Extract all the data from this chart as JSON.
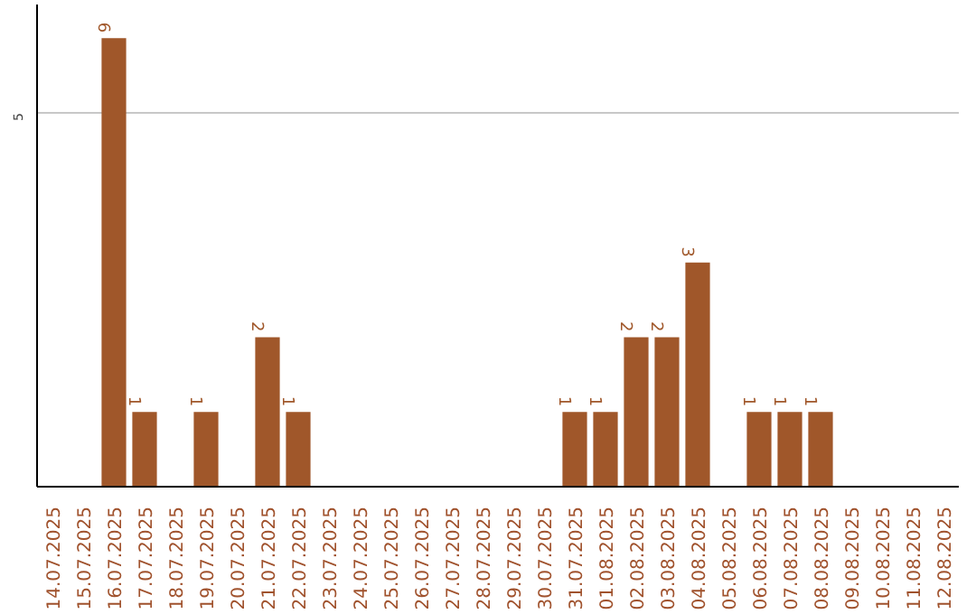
{
  "chart_data": {
    "type": "bar",
    "categories": [
      "14.07.2025",
      "15.07.2025",
      "16.07.2025",
      "17.07.2025",
      "18.07.2025",
      "19.07.2025",
      "20.07.2025",
      "21.07.2025",
      "22.07.2025",
      "23.07.2025",
      "24.07.2025",
      "25.07.2025",
      "26.07.2025",
      "27.07.2025",
      "28.07.2025",
      "29.07.2025",
      "30.07.2025",
      "31.07.2025",
      "01.08.2025",
      "02.08.2025",
      "03.08.2025",
      "04.08.2025",
      "05.08.2025",
      "06.08.2025",
      "07.08.2025",
      "08.08.2025",
      "09.08.2025",
      "10.08.2025",
      "11.08.2025",
      "12.08.2025"
    ],
    "values": [
      0,
      0,
      6,
      1,
      0,
      1,
      0,
      2,
      1,
      0,
      0,
      0,
      0,
      0,
      0,
      0,
      0,
      1,
      1,
      2,
      2,
      3,
      0,
      1,
      1,
      1,
      0,
      0,
      0,
      0
    ],
    "value_labels": [
      null,
      null,
      "6",
      "1",
      null,
      "1",
      null,
      "2",
      "1",
      null,
      null,
      null,
      null,
      null,
      null,
      null,
      null,
      "1",
      "1",
      "2",
      "2",
      "3",
      null,
      "1",
      "1",
      "1",
      null,
      null,
      null,
      null
    ],
    "color": "#a0572a",
    "ylim": [
      0,
      6.45
    ],
    "yticks": [
      5
    ],
    "grid": "y"
  }
}
